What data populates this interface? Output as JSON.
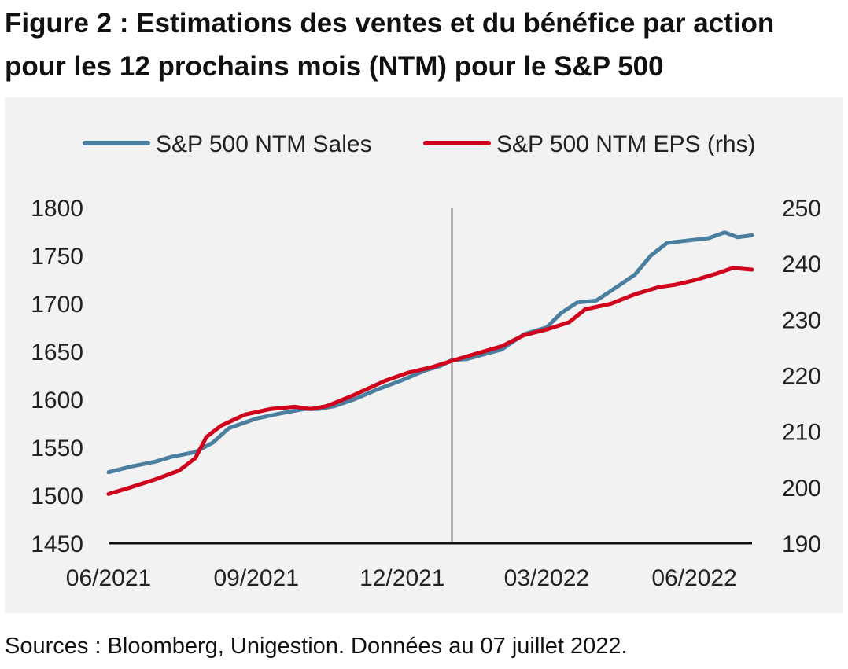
{
  "title_line1": "Figure 2 : Estimations des ventes et du bénéfice par action",
  "title_line2": "pour les 12 prochains mois (NTM) pour le S&P 500",
  "source": "Sources : Bloomberg, Unigestion. Données au 07 juillet 2022.",
  "chart_data": {
    "type": "line",
    "legend_position": "top",
    "grid": false,
    "x_ticks": [
      "06/2021",
      "09/2021",
      "12/2021",
      "03/2022",
      "06/2022"
    ],
    "x_range": [
      "2021-06-01",
      "2022-07-07"
    ],
    "vertical_marker": "2022-01-01",
    "y_left": {
      "min": 1450,
      "max": 1800,
      "ticks": [
        1800,
        1750,
        1700,
        1650,
        1600,
        1550,
        1500,
        1450
      ]
    },
    "y_right": {
      "min": 190,
      "max": 250,
      "ticks": [
        250,
        240,
        230,
        220,
        210,
        200,
        190
      ]
    },
    "series": [
      {
        "name": "S&P 500 NTM Sales",
        "axis": "left",
        "color": "#4a7fa0",
        "points": [
          [
            "2021-06-01",
            1524
          ],
          [
            "2021-06-15",
            1530
          ],
          [
            "2021-06-30",
            1535
          ],
          [
            "2021-07-10",
            1540
          ],
          [
            "2021-07-25",
            1545
          ],
          [
            "2021-08-05",
            1555
          ],
          [
            "2021-08-15",
            1570
          ],
          [
            "2021-09-01",
            1580
          ],
          [
            "2021-09-15",
            1585
          ],
          [
            "2021-10-01",
            1590
          ],
          [
            "2021-10-10",
            1590
          ],
          [
            "2021-10-20",
            1593
          ],
          [
            "2021-11-01",
            1600
          ],
          [
            "2021-11-15",
            1610
          ],
          [
            "2021-12-01",
            1620
          ],
          [
            "2021-12-15",
            1630
          ],
          [
            "2021-12-25",
            1635
          ],
          [
            "2022-01-01",
            1641
          ],
          [
            "2022-01-10",
            1642
          ],
          [
            "2022-02-01",
            1652
          ],
          [
            "2022-02-15",
            1668
          ],
          [
            "2022-03-01",
            1675
          ],
          [
            "2022-03-10",
            1690
          ],
          [
            "2022-03-20",
            1701
          ],
          [
            "2022-04-01",
            1703
          ],
          [
            "2022-04-10",
            1713
          ],
          [
            "2022-04-25",
            1730
          ],
          [
            "2022-05-05",
            1750
          ],
          [
            "2022-05-15",
            1763
          ],
          [
            "2022-05-25",
            1765
          ],
          [
            "2022-06-10",
            1768
          ],
          [
            "2022-06-20",
            1774
          ],
          [
            "2022-06-28",
            1769
          ],
          [
            "2022-07-07",
            1771
          ]
        ]
      },
      {
        "name": "S&P 500 NTM EPS (rhs)",
        "axis": "right",
        "color": "#d0021b",
        "points": [
          [
            "2021-06-01",
            198.8
          ],
          [
            "2021-06-15",
            200.0
          ],
          [
            "2021-07-01",
            201.5
          ],
          [
            "2021-07-15",
            203.0
          ],
          [
            "2021-07-25",
            205.2
          ],
          [
            "2021-08-01",
            209.0
          ],
          [
            "2021-08-10",
            211.0
          ],
          [
            "2021-08-25",
            213.0
          ],
          [
            "2021-09-10",
            214.0
          ],
          [
            "2021-09-25",
            214.4
          ],
          [
            "2021-10-05",
            214.0
          ],
          [
            "2021-10-15",
            214.5
          ],
          [
            "2021-11-01",
            216.5
          ],
          [
            "2021-11-20",
            219.0
          ],
          [
            "2021-12-05",
            220.5
          ],
          [
            "2021-12-20",
            221.5
          ],
          [
            "2022-01-01",
            222.6
          ],
          [
            "2022-01-15",
            223.8
          ],
          [
            "2022-02-01",
            225.2
          ],
          [
            "2022-02-15",
            227.2
          ],
          [
            "2022-03-01",
            228.2
          ],
          [
            "2022-03-15",
            229.5
          ],
          [
            "2022-03-25",
            231.8
          ],
          [
            "2022-04-10",
            232.8
          ],
          [
            "2022-04-25",
            234.5
          ],
          [
            "2022-05-10",
            235.8
          ],
          [
            "2022-05-20",
            236.2
          ],
          [
            "2022-06-01",
            237.0
          ],
          [
            "2022-06-15",
            238.2
          ],
          [
            "2022-06-25",
            239.2
          ],
          [
            "2022-07-07",
            238.9
          ]
        ]
      }
    ]
  }
}
